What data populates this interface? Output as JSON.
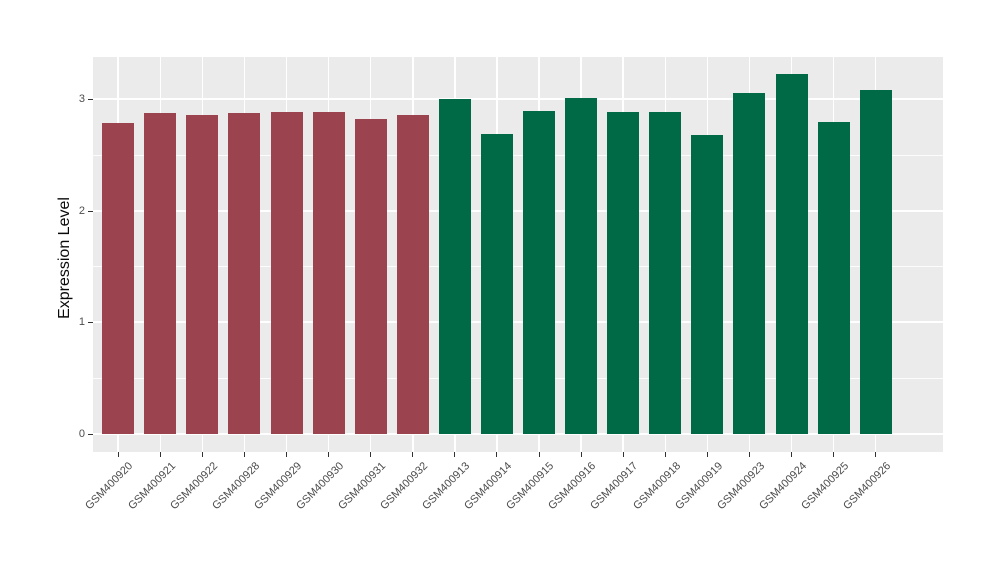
{
  "chart_data": {
    "type": "bar",
    "title": "",
    "xlabel": "",
    "ylabel": "Expression Level",
    "ylim": [
      0,
      3.375
    ],
    "yticks": [
      0,
      1,
      2,
      3
    ],
    "grid": "white gridlines on gray panel, ggplot style",
    "legend_position": "none",
    "categories": [
      "GSM400920",
      "GSM400921",
      "GSM400922",
      "GSM400928",
      "GSM400929",
      "GSM400930",
      "GSM400931",
      "GSM400932",
      "GSM400913",
      "GSM400914",
      "GSM400915",
      "GSM400916",
      "GSM400917",
      "GSM400918",
      "GSM400919",
      "GSM400923",
      "GSM400924",
      "GSM400925",
      "GSM400926"
    ],
    "values": [
      2.78,
      2.87,
      2.86,
      2.87,
      2.88,
      2.88,
      2.82,
      2.86,
      3.0,
      2.69,
      2.89,
      3.01,
      2.88,
      2.88,
      2.68,
      3.05,
      3.22,
      2.79,
      3.08
    ],
    "bar_colors": [
      "#9B4450",
      "#9B4450",
      "#9B4450",
      "#9B4450",
      "#9B4450",
      "#9B4450",
      "#9B4450",
      "#9B4450",
      "#006946",
      "#006946",
      "#006946",
      "#006946",
      "#006946",
      "#006946",
      "#006946",
      "#006946",
      "#006946",
      "#006946",
      "#006946"
    ],
    "colors": {
      "group1_red": "#9B4450",
      "group2_green": "#006946",
      "panel_background": "#EBEBEB",
      "gridline": "#FFFFFF",
      "tick_label": "#4D4D4D",
      "axis_title": "#0A0A0A"
    }
  }
}
